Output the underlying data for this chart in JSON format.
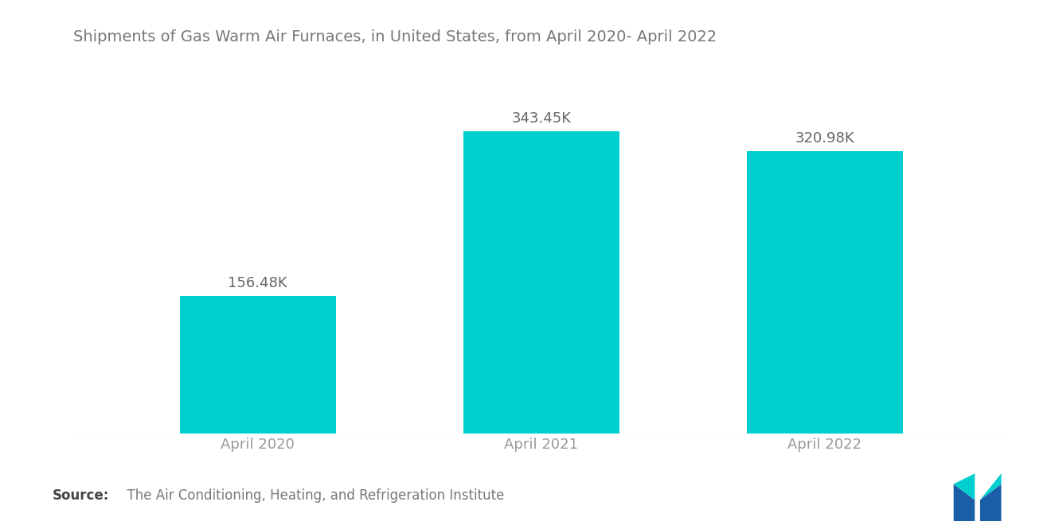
{
  "title": "Shipments of Gas Warm Air Furnaces, in United States, from April 2020- April 2022",
  "categories": [
    "April 2020",
    "April 2021",
    "April 2022"
  ],
  "values": [
    156.48,
    343.45,
    320.98
  ],
  "labels": [
    "156.48K",
    "343.45K",
    "320.98K"
  ],
  "bar_color": "#00CFCF",
  "background_color": "#ffffff",
  "title_color": "#777777",
  "label_color": "#666666",
  "tick_color": "#999999",
  "source_bold": "Source:",
  "source_rest": "  The Air Conditioning, Heating, and Refrigeration Institute",
  "title_fontsize": 14,
  "label_fontsize": 13,
  "tick_fontsize": 13,
  "source_fontsize": 12,
  "bar_width": 0.55,
  "ylim": [
    0,
    420
  ],
  "logo_blue": "#1A5EA8",
  "logo_teal": "#00CFCF"
}
